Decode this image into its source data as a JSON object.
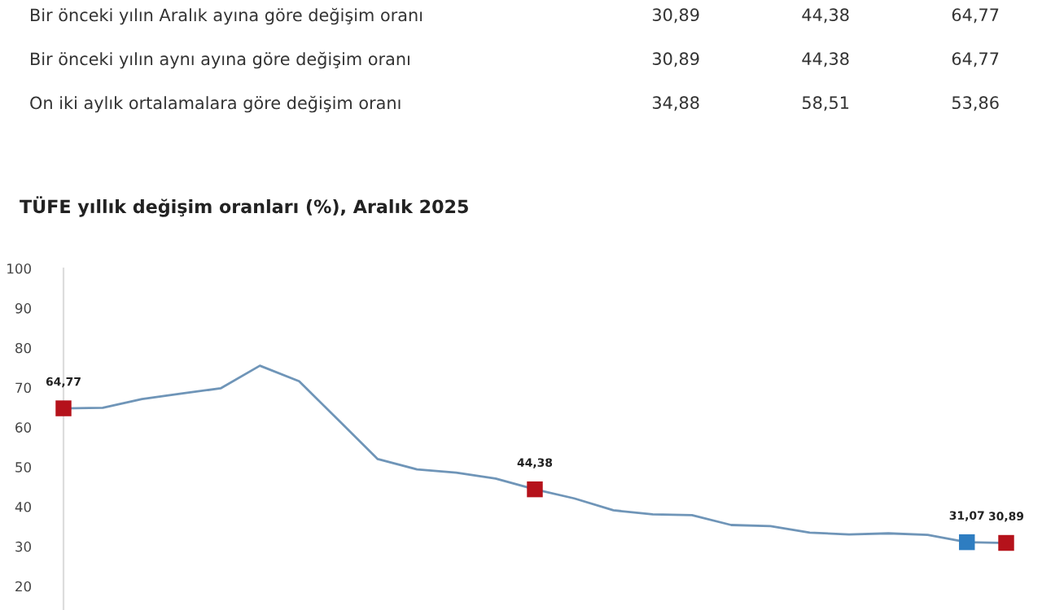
{
  "chart_data": {
    "type": "line",
    "title": "TÜFE yıllık değişim oranları (%), Aralık 2025",
    "annotations": [
      "Bir önceki yılın Aralık ayına göre değişim oranı",
      "30,89",
      "44,38",
      "64,77",
      "Bir önceki yılın aynı ayına göre değişim oranı",
      "30,89",
      "44,38",
      "64,77",
      "On iki aylık ortalamalara göre değişim oranı",
      "34,88",
      "58,51",
      "53,86"
    ],
    "categories": [
      null,
      null,
      null,
      null,
      null,
      null,
      null,
      null,
      null,
      null,
      null,
      null,
      null,
      null,
      null,
      null,
      null,
      null,
      null,
      null,
      null,
      null,
      null,
      null,
      null
    ],
    "series": [
      {
        "color": "#6f95b8",
        "values": [
          64.77,
          64.9,
          67.1,
          68.5,
          69.8,
          75.5,
          71.6,
          61.8,
          52.0,
          49.4,
          48.6,
          47.1,
          44.38,
          42.1,
          39.1,
          38.1,
          37.9,
          35.4,
          35.1,
          33.5,
          33.0,
          33.3,
          32.9,
          31.07,
          30.89
        ],
        "colors": [
          "#b5121b",
          null,
          null,
          null,
          null,
          null,
          null,
          null,
          null,
          null,
          null,
          null,
          "#b5121b",
          null,
          null,
          null,
          null,
          null,
          null,
          null,
          null,
          null,
          null,
          "#2e7dc1",
          "#b5121b"
        ],
        "value_labels": [
          "64,77",
          null,
          null,
          null,
          null,
          null,
          null,
          null,
          null,
          null,
          null,
          null,
          "44,38",
          null,
          null,
          null,
          null,
          null,
          null,
          null,
          null,
          null,
          null,
          "31,07",
          "30,89"
        ]
      }
    ],
    "line_style": "solid",
    "ylim": [
      14,
      100
    ],
    "yticks": [
      20,
      30,
      40,
      50,
      60,
      70,
      80,
      90,
      100
    ],
    "grid": false,
    "tick_labels": "y"
  }
}
